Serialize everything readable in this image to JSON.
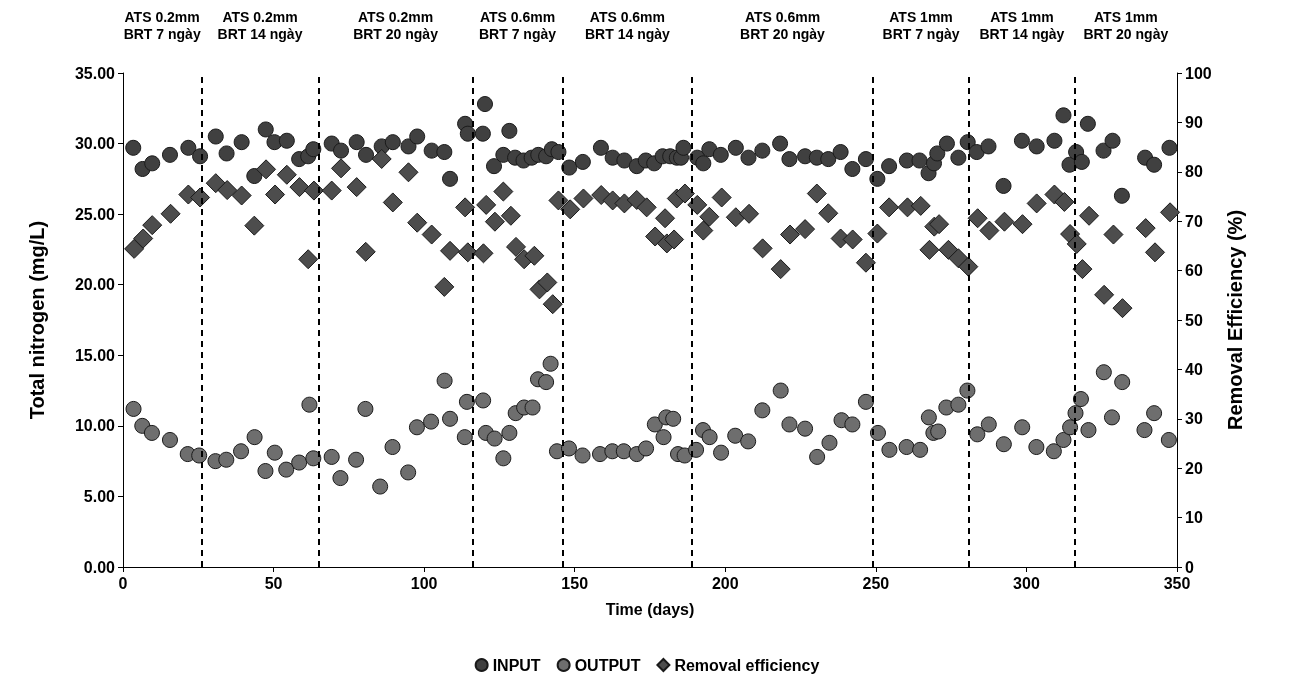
{
  "chart_data": {
    "type": "scatter",
    "xlabel": "Time (days)",
    "ylabel": "Total nitrogen (mg/L)",
    "y2label": "Removal Efficiency (%)",
    "xlim": [
      0,
      350
    ],
    "xticks": [
      0,
      50,
      100,
      150,
      200,
      250,
      300,
      350
    ],
    "ylim": [
      0,
      35
    ],
    "yticks": [
      {
        "value": 0,
        "label": "0.00"
      },
      {
        "value": 5,
        "label": "5.00"
      },
      {
        "value": 10,
        "label": "10.00"
      },
      {
        "value": 15,
        "label": "15.00"
      },
      {
        "value": 20,
        "label": "20.00"
      },
      {
        "value": 25,
        "label": "25.00"
      },
      {
        "value": 30,
        "label": "30.00"
      },
      {
        "value": 35,
        "label": "35.00"
      }
    ],
    "y2lim": [
      0,
      100
    ],
    "y2ticks": [
      0,
      10,
      20,
      30,
      40,
      50,
      60,
      70,
      80,
      90,
      100
    ],
    "grid": false,
    "legend": "bottom",
    "series": [
      {
        "name": "INPUT",
        "color": "#404040",
        "marker": "circle",
        "x": [
          3.4,
          6.5,
          9.7,
          15.6,
          21.7,
          25.6,
          30.8,
          34.4,
          39.4,
          43.6,
          47.4,
          50.3,
          54.4,
          58.5,
          61.5,
          63.2,
          69.3,
          72.4,
          77.6,
          80.7,
          85.9,
          89.6,
          94.8,
          97.7,
          102.5,
          106.7,
          108.6,
          113.6,
          114.5,
          119.5,
          120.2,
          123.2,
          126.3,
          128.3,
          130.2,
          133,
          135.7,
          137.9,
          140.5,
          142.4,
          144.6,
          148.2,
          152.7,
          158.7,
          162.6,
          166.5,
          170.6,
          173.6,
          176.4,
          179.2,
          181.7,
          183.9,
          185.3,
          186.1,
          190.7,
          192.7,
          194.7,
          198.5,
          203.5,
          207.7,
          212.3,
          218.2,
          221.3,
          226.5,
          230.4,
          234.2,
          238.3,
          242.2,
          246.7,
          250.5,
          254.4,
          260.3,
          264.5,
          267.5,
          269.3,
          270.4,
          273.6,
          277.4,
          280.5,
          283.5,
          287.4,
          292.4,
          298.5,
          303.4,
          309.3,
          312.3,
          314.3,
          316.5,
          318.4,
          320.4,
          325.6,
          328.6,
          331.7,
          339.4,
          342.4,
          347.5
        ],
        "values": [
          29.7,
          28.2,
          28.6,
          29.2,
          29.7,
          29.1,
          30.5,
          29.3,
          30.1,
          27.7,
          31.0,
          30.1,
          30.2,
          28.9,
          29.1,
          29.6,
          30.0,
          29.5,
          30.1,
          29.2,
          29.8,
          30.1,
          29.8,
          30.5,
          29.5,
          29.4,
          27.5,
          31.4,
          30.7,
          30.7,
          32.8,
          28.4,
          29.2,
          30.9,
          29.0,
          28.8,
          29.0,
          29.2,
          29.1,
          29.6,
          29.4,
          28.3,
          28.7,
          29.7,
          29.0,
          28.8,
          28.4,
          28.8,
          28.6,
          29.1,
          29.1,
          29.0,
          29.0,
          29.7,
          29.0,
          28.6,
          29.6,
          29.2,
          29.7,
          29.0,
          29.5,
          30.0,
          28.9,
          29.1,
          29.0,
          28.9,
          29.4,
          28.2,
          28.9,
          27.5,
          28.4,
          28.8,
          28.8,
          27.9,
          28.6,
          29.3,
          30.0,
          29.0,
          30.1,
          29.4,
          29.8,
          27.0,
          30.2,
          29.8,
          30.2,
          32.0,
          28.5,
          29.4,
          28.7,
          31.4,
          29.5,
          30.2,
          26.3,
          29.0,
          28.5,
          29.7
        ]
      },
      {
        "name": "OUTPUT",
        "color": "#6e6e6e",
        "marker": "circle",
        "x": [
          3.5,
          6.4,
          9.6,
          15.6,
          21.5,
          25.3,
          30.7,
          34.3,
          39.2,
          43.7,
          47.3,
          50.4,
          54.2,
          58.5,
          61.9,
          63.2,
          69.3,
          72.2,
          77.4,
          80.5,
          85.4,
          89.5,
          94.7,
          97.6,
          102.3,
          106.8,
          108.6,
          113.5,
          114.2,
          119.6,
          120.5,
          123.4,
          126.3,
          128.3,
          130.4,
          133.2,
          136,
          137.8,
          140.5,
          142,
          144.1,
          148.1,
          152.6,
          158.4,
          162.5,
          166.3,
          170.6,
          173.7,
          176.6,
          179.5,
          180.4,
          182.7,
          184.3,
          186.5,
          190.3,
          192.6,
          194.8,
          198.6,
          203.3,
          207.6,
          212.3,
          218.4,
          221.3,
          226.5,
          230.5,
          234.6,
          238.6,
          242.2,
          246.7,
          250.7,
          254.5,
          260.2,
          264.7,
          267.6,
          269.1,
          270.7,
          273.4,
          277.4,
          280.4,
          283.7,
          287.5,
          292.5,
          298.6,
          303.3,
          309.1,
          312.3,
          314.5,
          316.3,
          318.1,
          320.6,
          325.7,
          328.4,
          331.8,
          339.2,
          342.4,
          347.3
        ],
        "values": [
          11.2,
          10.0,
          9.5,
          9.0,
          8.0,
          7.9,
          7.5,
          7.6,
          8.2,
          9.2,
          6.8,
          8.1,
          6.9,
          7.4,
          11.5,
          7.7,
          7.8,
          6.3,
          7.6,
          11.2,
          5.7,
          8.5,
          6.7,
          9.9,
          10.3,
          13.2,
          10.5,
          9.2,
          11.7,
          11.8,
          9.5,
          9.1,
          7.7,
          9.5,
          10.9,
          11.3,
          11.3,
          13.3,
          13.1,
          14.4,
          8.2,
          8.4,
          7.9,
          8.0,
          8.2,
          8.2,
          8.0,
          8.4,
          10.1,
          9.2,
          10.6,
          10.5,
          8.0,
          7.9,
          8.3,
          9.7,
          9.2,
          8.1,
          9.3,
          8.9,
          11.1,
          12.5,
          10.1,
          9.8,
          7.8,
          8.8,
          10.4,
          10.1,
          11.7,
          9.5,
          8.3,
          8.5,
          8.3,
          10.6,
          9.5,
          9.6,
          11.3,
          11.5,
          12.5,
          9.4,
          10.1,
          8.7,
          9.9,
          8.5,
          8.2,
          9.0,
          9.9,
          10.9,
          11.9,
          9.7,
          13.8,
          10.6,
          13.1,
          9.7,
          10.9,
          9.0
        ]
      },
      {
        "name": "Removal efficiency",
        "color": "#4d4d4d",
        "marker": "diamond",
        "axis": "y2",
        "x": [
          3.7,
          6.7,
          9.7,
          15.8,
          21.7,
          25.6,
          30.8,
          34.6,
          39.4,
          43.6,
          47.5,
          50.5,
          54.4,
          58.6,
          61.5,
          63.4,
          69.3,
          72.4,
          77.6,
          80.6,
          85.9,
          89.6,
          94.8,
          97.7,
          102.5,
          106.7,
          108.6,
          113.6,
          114.5,
          119.7,
          120.6,
          123.5,
          126.3,
          128.8,
          130.5,
          133.2,
          136.6,
          138.3,
          140.9,
          142.7,
          144.6,
          148.5,
          152.9,
          158.8,
          162.6,
          166.5,
          170.6,
          173.9,
          176.7,
          180,
          180.6,
          183,
          183.9,
          186.6,
          190.7,
          192.7,
          194.7,
          198.8,
          203.5,
          207.9,
          212.4,
          218.4,
          221.5,
          226.5,
          230.4,
          234.2,
          238.3,
          242.3,
          246.7,
          250.5,
          254.4,
          260.5,
          264.9,
          267.8,
          269.4,
          271,
          274.1,
          277.4,
          280.7,
          283.8,
          287.7,
          292.7,
          298.7,
          303.4,
          309.3,
          312.6,
          314.5,
          316.7,
          318.6,
          320.8,
          325.8,
          328.9,
          331.9,
          339.6,
          342.7,
          347.7
        ],
        "values": [
          64.4,
          66.5,
          69.2,
          71.5,
          75.4,
          74.8,
          77.7,
          76.3,
          75.2,
          69.1,
          80.5,
          75.4,
          79.4,
          76.9,
          62.3,
          76.2,
          76.2,
          80.7,
          76.9,
          63.8,
          82.6,
          73.8,
          79.9,
          69.7,
          67.3,
          56.7,
          64.0,
          72.8,
          63.7,
          63.5,
          73.3,
          69.9,
          76.0,
          71.1,
          64.8,
          62.3,
          63.0,
          56.2,
          57.6,
          53.2,
          74.2,
          72.4,
          74.6,
          75.3,
          74.2,
          73.6,
          74.3,
          72.8,
          66.9,
          70.6,
          65.5,
          66.3,
          74.6,
          75.6,
          73.3,
          68.1,
          70.9,
          74.8,
          70.8,
          71.5,
          64.5,
          60.3,
          67.3,
          68.4,
          75.6,
          71.6,
          66.5,
          66.3,
          61.6,
          67.5,
          72.8,
          72.8,
          73.1,
          64.2,
          68.9,
          69.4,
          64.2,
          62.5,
          60.8,
          70.6,
          68.1,
          69.9,
          69.4,
          73.6,
          75.4,
          73.9,
          67.4,
          65.4,
          60.3,
          71.1,
          55.1,
          67.3,
          52.4,
          68.6,
          63.7,
          71.8
        ]
      }
    ],
    "ref_lines": [
      {
        "axis": "x",
        "value": 26,
        "color": "#000000",
        "line_style": "dashed"
      },
      {
        "axis": "x",
        "value": 65,
        "color": "#000000",
        "line_style": "dashed"
      },
      {
        "axis": "x",
        "value": 116,
        "color": "#000000",
        "line_style": "dashed"
      },
      {
        "axis": "x",
        "value": 146,
        "color": "#000000",
        "line_style": "dashed"
      },
      {
        "axis": "x",
        "value": 189,
        "color": "#000000",
        "line_style": "dashed"
      },
      {
        "axis": "x",
        "value": 249,
        "color": "#000000",
        "line_style": "dashed"
      },
      {
        "axis": "x",
        "value": 281,
        "color": "#000000",
        "line_style": "dashed"
      },
      {
        "axis": "x",
        "value": 316,
        "color": "#000000",
        "line_style": "dashed"
      }
    ],
    "annotations": [
      "ATS 0.2mm\nBRT 7 ngày",
      "ATS 0.2mm\nBRT 14 ngày",
      "ATS 0.2mm\nBRT 20 ngày",
      "ATS 0.6mm\nBRT 7 ngày",
      "ATS 0.6mm\nBRT 14 ngày",
      "ATS 0.6mm\nBRT 20 ngày",
      "ATS 1mm\nBRT 7 ngày",
      "ATS 1mm\nBRT 14 ngày",
      "ATS 1mm\nBRT 20 ngày"
    ]
  }
}
